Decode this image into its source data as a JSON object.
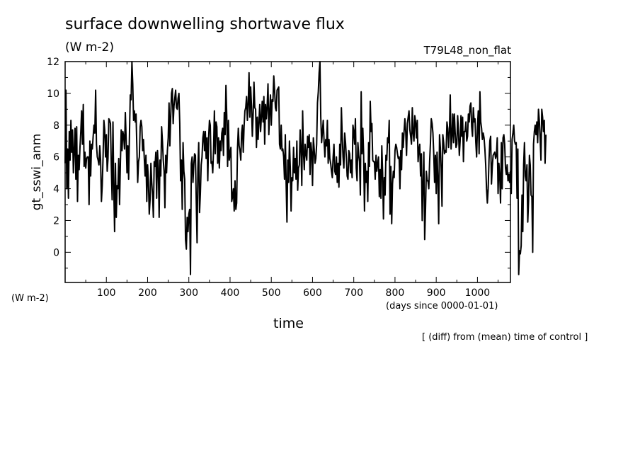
{
  "chart_data": {
    "type": "line",
    "title": "surface downwelling shortwave flux",
    "subtitle": "(W m-2)",
    "run_label": "T79L48_non_flat",
    "ylabel": "gt_sswi_anm",
    "yunits": "(W m-2)",
    "xlabel": "time",
    "xunits": "(days since 0000-01-01)",
    "note": "[ (diff) from (mean) time of control ]",
    "xlim": [
      0,
      1080
    ],
    "ylim": [
      -1.9,
      12
    ],
    "x_ticks": [
      100,
      200,
      300,
      400,
      500,
      600,
      700,
      800,
      900,
      1000
    ],
    "y_ticks": [
      0,
      2,
      4,
      6,
      8,
      10,
      12
    ],
    "grid": false,
    "series": [
      {
        "x_start": 0,
        "x_step": 2,
        "values": [
          5.6,
          10.2,
          4.0,
          6.5,
          3.4,
          7.6,
          5.8,
          8.3,
          6.3,
          7.7,
          5.0,
          6.4,
          7.8,
          4.6,
          7.9,
          3.2,
          6.1,
          5.2,
          6.6,
          7.6,
          8.9,
          6.8,
          9.3,
          5.4,
          6.3,
          5.3,
          5.9,
          6.0,
          6.0,
          3.0,
          7.0,
          4.8,
          6.8,
          6.5,
          7.3,
          8.0,
          7.5,
          10.2,
          6.8,
          6.0,
          5.8,
          5.5,
          6.7,
          5.8,
          3.2,
          4.2,
          6.0,
          8.3,
          7.7,
          6.0,
          7.4,
          5.1,
          5.9,
          8.4,
          8.3,
          8.1,
          5.4,
          3.3,
          8.2,
          4.0,
          1.3,
          5.6,
          2.2,
          4.2,
          4.0,
          5.9,
          3.0,
          5.6,
          7.7,
          6.4,
          7.6,
          7.3,
          6.5,
          8.8,
          7.1,
          5.0,
          6.7,
          4.6,
          7.4,
          9.9,
          9.6,
          12.0,
          10.6,
          8.3,
          8.9,
          8.2,
          8.7,
          6.6,
          4.4,
          5.7,
          6.0,
          7.9,
          8.3,
          7.9,
          6.4,
          7.1,
          5.9,
          4.8,
          6.1,
          3.2,
          5.5,
          4.5,
          2.4,
          3.3,
          5.6,
          4.4,
          3.6,
          2.2,
          5.7,
          5.4,
          6.3,
          3.4,
          6.4,
          5.3,
          2.2,
          5.8,
          4.8,
          7.9,
          7.0,
          5.8,
          5.1,
          2.8,
          6.1,
          5.0,
          6.4,
          7.2,
          9.4,
          6.7,
          8.5,
          10.0,
          10.3,
          8.1,
          9.2,
          9.7,
          10.2,
          9.1,
          9.0,
          9.7,
          10.0,
          8.1,
          4.5,
          5.8,
          2.7,
          6.9,
          5.1,
          4.6,
          0.8,
          0.2,
          2.2,
          1.3,
          2.4,
          2.7,
          -1.4,
          5.6,
          6.0,
          4.4,
          5.5,
          6.2,
          6.1,
          3.2,
          0.6,
          5.3,
          6.9,
          2.5,
          3.7,
          5.5,
          6.0,
          7.2,
          7.6,
          6.4,
          7.6,
          5.9,
          7.2,
          4.5,
          7.2,
          8.3,
          8.0,
          5.6,
          5.7,
          5.0,
          6.5,
          8.9,
          6.2,
          8.2,
          7.9,
          5.6,
          7.2,
          5.3,
          7.0,
          6.4,
          7.5,
          7.8,
          6.1,
          8.8,
          7.4,
          10.5,
          8.6,
          5.4,
          8.3,
          5.8,
          6.2,
          6.6,
          3.2,
          3.5,
          4.0,
          2.6,
          4.5,
          2.7,
          3.1,
          6.5,
          7.8,
          6.7,
          6.4,
          5.8,
          7.5,
          8.0,
          6.3,
          7.9,
          8.9,
          9.1,
          9.8,
          8.3,
          9.3,
          11.3,
          8.5,
          10.4,
          9.2,
          7.3,
          8.7,
          10.7,
          9.1,
          9.0,
          6.6,
          8.5,
          7.1,
          8.2,
          9.3,
          7.6,
          8.5,
          9.5,
          8.2,
          9.8,
          6.8,
          9.3,
          8.4,
          9.2,
          10.6,
          7.4,
          8.8,
          9.9,
          8.0,
          9.6,
          9.5,
          11.1,
          10.2,
          9.1,
          8.9,
          10.2,
          10.3,
          10.4,
          6.8,
          6.5,
          8.0,
          6.4,
          6.5,
          6.0,
          4.6,
          7.4,
          4.3,
          1.9,
          5.8,
          4.4,
          7.0,
          5.4,
          2.6,
          4.7,
          4.5,
          6.6,
          5.0,
          5.9,
          4.6,
          7.0,
          3.9,
          5.3,
          5.5,
          7.7,
          6.5,
          4.2,
          8.9,
          6.3,
          5.2,
          6.8,
          6.2,
          5.8,
          7.3,
          6.6,
          7.4,
          4.9,
          6.9,
          6.3,
          4.2,
          7.2,
          6.5,
          5.6,
          5.9,
          6.8,
          9.4,
          10.1,
          11.3,
          12.0,
          8.5,
          6.9,
          7.6,
          8.3,
          7.0,
          6.0,
          7.1,
          6.7,
          8.3,
          5.6,
          7.1,
          5.9,
          5.6,
          5.1,
          4.7,
          6.0,
          6.8,
          5.1,
          4.9,
          6.0,
          4.4,
          5.6,
          4.1,
          6.8,
          5.5,
          9.1,
          7.3,
          6.0,
          5.3,
          7.5,
          6.9,
          6.0,
          4.8,
          4.6,
          6.4,
          6.2,
          5.0,
          5.8,
          4.7,
          8.0,
          7.6,
          6.8,
          8.4,
          5.3,
          4.5,
          6.9,
          6.1,
          5.7,
          3.6,
          10.1,
          6.2,
          7.8,
          6.1,
          2.6,
          5.6,
          4.4,
          5.1,
          3.2,
          6.9,
          5.4,
          9.5,
          7.6,
          8.1,
          5.8,
          5.7,
          5.7,
          4.6,
          6.1,
          5.1,
          5.6,
          6.0,
          3.5,
          5.2,
          3.4,
          6.7,
          5.0,
          2.1,
          4.7,
          3.6,
          6.1,
          5.8,
          7.2,
          6.9,
          8.3,
          2.4,
          5.4,
          1.8,
          4.3,
          5.1,
          4.7,
          6.4,
          6.8,
          6.6,
          6.2,
          5.9,
          6.0,
          4.0,
          6.4,
          5.2,
          7.5,
          6.6,
          7.6,
          8.4,
          7.6,
          6.1,
          8.1,
          8.5,
          8.9,
          7.7,
          7.3,
          6.8,
          9.1,
          7.5,
          7.0,
          8.6,
          8.2,
          7.2,
          8.3,
          5.7,
          6.5,
          6.8,
          4.8,
          6.2,
          2.0,
          4.2,
          6.3,
          0.8,
          2.7,
          5.1,
          4.5,
          4.5,
          4.0,
          5.7,
          6.9,
          8.4,
          8.1,
          7.5,
          6.2,
          4.4,
          6.1,
          3.7,
          6.3,
          4.5,
          1.8,
          7.4,
          6.6,
          5.3,
          2.9,
          7.4,
          6.9,
          6.2,
          6.4,
          6.3,
          8.2,
          7.8,
          6.6,
          7.6,
          9.9,
          6.5,
          7.3,
          8.7,
          6.9,
          8.7,
          7.5,
          6.6,
          6.8,
          8.6,
          7.6,
          6.1,
          7.0,
          8.6,
          7.3,
          8.5,
          5.7,
          7.6,
          7.6,
          8.2,
          7.0,
          7.3,
          8.7,
          8.2,
          9.2,
          9.4,
          7.9,
          7.3,
          9.1,
          8.2,
          8.4,
          6.9,
          6.0,
          7.9,
          8.9,
          6.2,
          10.1,
          8.2,
          7.8,
          7.1,
          7.5,
          7.2,
          6.5,
          5.5,
          4.0,
          3.1,
          4.0,
          5.8,
          7.0,
          7.3,
          4.3,
          5.4,
          6.1,
          6.2,
          6.3,
          5.9,
          6.1,
          7.2,
          3.7,
          5.6,
          4.8,
          3.1,
          6.9,
          4.0,
          7.2,
          7.4,
          6.8,
          5.3,
          4.9,
          5.5,
          4.5,
          4.9,
          4.4,
          5.1,
          3.7,
          7.1,
          7.5,
          8.0,
          7.0,
          6.8,
          6.9,
          3.4,
          6.5,
          -1.4,
          0.1,
          -0.1,
          0.4,
          3.6,
          1.3,
          5.5,
          6.9,
          4.8,
          4.5,
          5.5,
          1.9,
          3.3,
          6.1,
          5.5,
          3.6,
          3.5,
          0.0,
          6.8,
          7.6,
          8.0,
          7.4,
          8.2,
          6.9,
          9.0,
          8.3,
          7.2,
          5.8,
          9.0,
          8.5,
          7.6,
          8.3,
          5.6,
          7.4
        ]
      }
    ]
  }
}
